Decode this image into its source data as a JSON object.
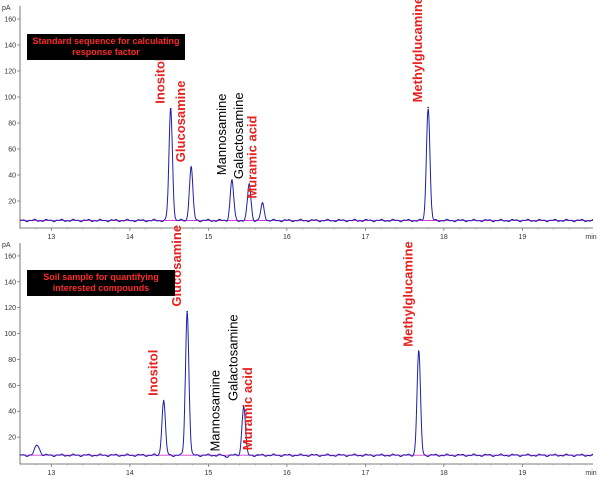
{
  "chart_data": [
    {
      "type": "line",
      "title": "Standard sequence for calculating response factor",
      "ylabel": "pA",
      "xlabel": "min",
      "xlim": [
        12.6,
        19.9
      ],
      "ylim": [
        0,
        170
      ],
      "x_ticks": [
        13,
        14,
        15,
        16,
        17,
        18,
        19
      ],
      "y_ticks": [
        20,
        40,
        60,
        80,
        100,
        120,
        140,
        160
      ],
      "baseline": 5,
      "grid": false,
      "legend": "none",
      "colors": {
        "signal": "#1f1fa8",
        "baseline": "#d23ad2",
        "highlight_label": "#e8211f",
        "plain_label": "#000000"
      },
      "peaks": [
        {
          "name": "Inositol",
          "rt": 14.52,
          "height": 91,
          "highlight": true
        },
        {
          "name": "Glucosamine",
          "rt": 14.78,
          "height": 46,
          "highlight": true
        },
        {
          "name": "Mannosamine",
          "rt": 15.3,
          "height": 36,
          "highlight": false
        },
        {
          "name": "Galactosamine",
          "rt": 15.52,
          "height": 33,
          "highlight": false
        },
        {
          "name": "Muramic acid",
          "rt": 15.69,
          "height": 18,
          "highlight": true
        },
        {
          "name": "Methylglucamine",
          "rt": 17.8,
          "height": 92,
          "highlight": true
        }
      ]
    },
    {
      "type": "line",
      "title": "Soil sample for quantifying interested compounds",
      "ylabel": "pA",
      "xlabel": "min",
      "xlim": [
        12.6,
        19.9
      ],
      "ylim": [
        0,
        170
      ],
      "x_ticks": [
        13,
        14,
        15,
        16,
        17,
        18,
        19
      ],
      "y_ticks": [
        20,
        40,
        60,
        80,
        100,
        120,
        140,
        160
      ],
      "baseline": 6,
      "grid": false,
      "legend": "none",
      "colors": {
        "signal": "#1f1fa8",
        "baseline": "#d23ad2",
        "highlight_label": "#e8211f",
        "plain_label": "#000000"
      },
      "minor_peaks": [
        {
          "rt": 12.82,
          "height": 14
        }
      ],
      "peaks": [
        {
          "name": "Inositol",
          "rt": 14.43,
          "height": 48,
          "highlight": true
        },
        {
          "name": "Glucosamine",
          "rt": 14.73,
          "height": 117,
          "highlight": true
        },
        {
          "name": "Mannosamine",
          "rt": 15.22,
          "height": 5,
          "highlight": false
        },
        {
          "name": "Galactosamine",
          "rt": 15.45,
          "height": 44,
          "highlight": false
        },
        {
          "name": "Muramic acid",
          "rt": 15.63,
          "height": 6,
          "highlight": true
        },
        {
          "name": "Methylglucamine",
          "rt": 17.68,
          "height": 86,
          "highlight": true
        }
      ]
    }
  ],
  "panels": [
    {
      "box_lines": [
        "Standard sequence for calculating",
        "response factor"
      ]
    },
    {
      "box_lines": [
        "Soil sample for quantifying",
        "interested compounds"
      ]
    }
  ]
}
